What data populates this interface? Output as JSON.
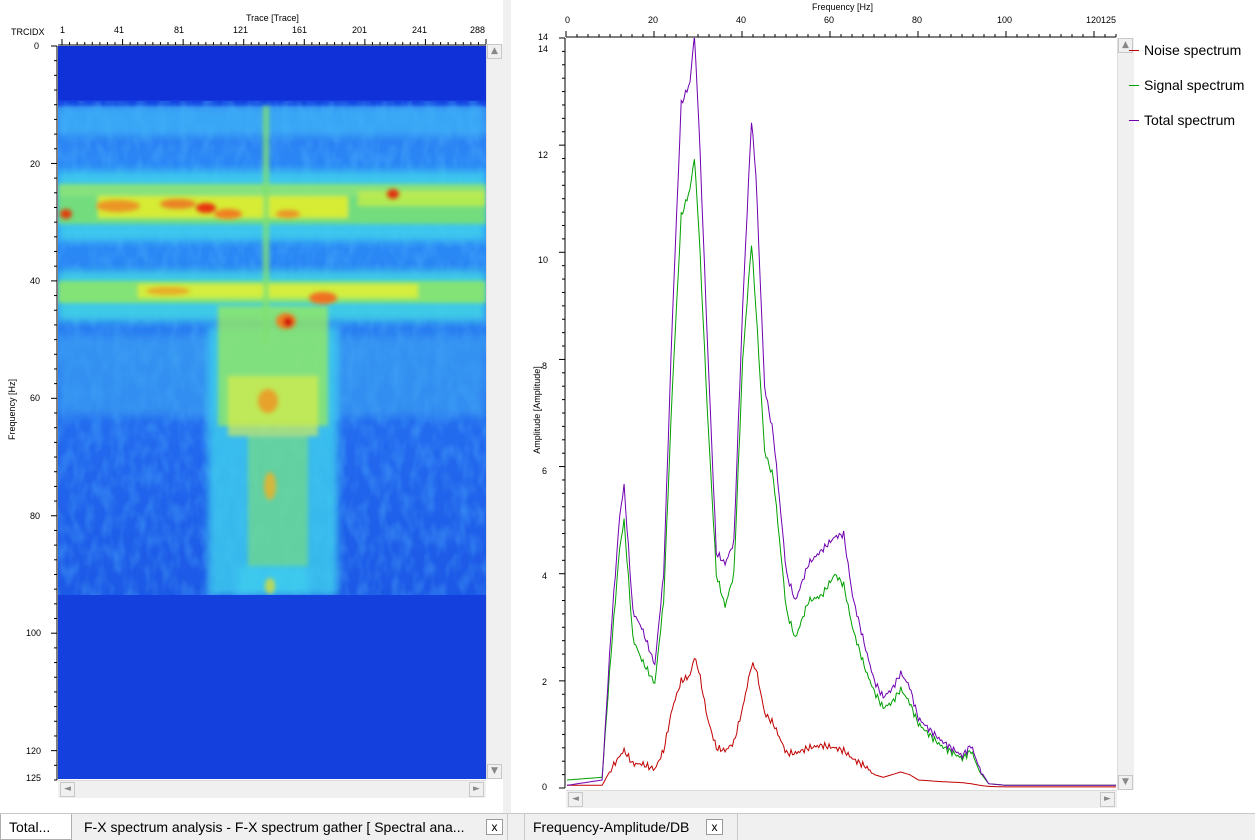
{
  "left_panel": {
    "top_axis_title": "Trace [Trace]",
    "corner_label": "TRCIDX",
    "top_ticks": [
      "1",
      "41",
      "81",
      "121",
      "161",
      "201",
      "241",
      "288"
    ],
    "left_axis_title": "Frequency [Hz]",
    "left_ticks": [
      "0",
      "20",
      "40",
      "60",
      "80",
      "100",
      "120",
      "125"
    ]
  },
  "right_panel": {
    "top_axis_title": "Frequency [Hz]",
    "top_ticks": [
      "0",
      "20",
      "40",
      "60",
      "80",
      "100",
      "120",
      "125"
    ],
    "y_axis_title": "Amplitude [Amplitude]",
    "y_ticks": [
      "0",
      "2",
      "4",
      "6",
      "8",
      "10",
      "12",
      "14"
    ],
    "y_top_label": "14",
    "legend": [
      {
        "label": "Noise spectrum",
        "color": "#c00000"
      },
      {
        "label": "Signal spectrum",
        "color": "#00a000"
      },
      {
        "label": "Total spectrum",
        "color": "#7000b0"
      }
    ]
  },
  "chart_data": {
    "type": "line",
    "xlabel": "Frequency [Hz]",
    "ylabel": "Amplitude [Amplitude]",
    "xlim": [
      0,
      125
    ],
    "ylim": [
      0,
      14
    ],
    "x": [
      0,
      8,
      10,
      12,
      13,
      15,
      17,
      20,
      22,
      24,
      26,
      28,
      29,
      30,
      32,
      34,
      36,
      38,
      40,
      42,
      43,
      45,
      47,
      50,
      52,
      55,
      58,
      61,
      63,
      65,
      68,
      70,
      72,
      74,
      76,
      78,
      80,
      85,
      90,
      92,
      94,
      96,
      100,
      110,
      125
    ],
    "series": [
      {
        "name": "Noise spectrum",
        "values": [
          0.05,
          0.05,
          0.35,
          0.6,
          0.7,
          0.45,
          0.45,
          0.35,
          0.7,
          1.5,
          2.0,
          2.1,
          2.45,
          2.2,
          1.3,
          0.75,
          0.7,
          0.85,
          1.5,
          2.3,
          2.25,
          1.4,
          1.2,
          0.65,
          0.65,
          0.75,
          0.8,
          0.75,
          0.7,
          0.55,
          0.4,
          0.25,
          0.2,
          0.25,
          0.3,
          0.25,
          0.15,
          0.12,
          0.1,
          0.08,
          0.05,
          0.03,
          0.02,
          0.02,
          0.02
        ]
      },
      {
        "name": "Signal spectrum",
        "values": [
          0.15,
          0.2,
          2.5,
          4.5,
          5.0,
          2.8,
          2.4,
          1.95,
          3.5,
          7.5,
          10.7,
          11.2,
          11.8,
          10.5,
          7.0,
          4.0,
          3.4,
          4.0,
          8.0,
          10.2,
          9.0,
          6.3,
          5.8,
          3.3,
          2.8,
          3.5,
          3.6,
          4.0,
          3.8,
          3.0,
          2.2,
          1.8,
          1.5,
          1.6,
          1.85,
          1.6,
          1.2,
          0.8,
          0.55,
          0.7,
          0.3,
          0.08,
          0.05,
          0.05,
          0.05
        ]
      },
      {
        "name": "Total spectrum",
        "values": [
          0.05,
          0.15,
          2.9,
          5.1,
          5.65,
          3.3,
          3.0,
          2.3,
          4.0,
          8.8,
          12.8,
          13.2,
          14.1,
          12.5,
          8.3,
          4.4,
          4.2,
          4.6,
          9.0,
          12.5,
          11.5,
          7.5,
          6.6,
          4.0,
          3.5,
          4.2,
          4.45,
          4.7,
          4.75,
          3.6,
          2.6,
          2.0,
          1.7,
          1.85,
          2.15,
          1.9,
          1.3,
          0.9,
          0.6,
          0.8,
          0.35,
          0.08,
          0.05,
          0.05,
          0.05
        ]
      }
    ]
  },
  "tabs": [
    {
      "label": "Total..."
    },
    {
      "label": "F-X spectrum analysis - F-X spectrum gather [ Spectral ana..."
    },
    {
      "label": "Frequency-Amplitude/DB"
    }
  ],
  "tab_close_glyph": "x",
  "scroll_arrows": {
    "up": "▲",
    "down": "▼",
    "left": "◄",
    "right": "►"
  }
}
